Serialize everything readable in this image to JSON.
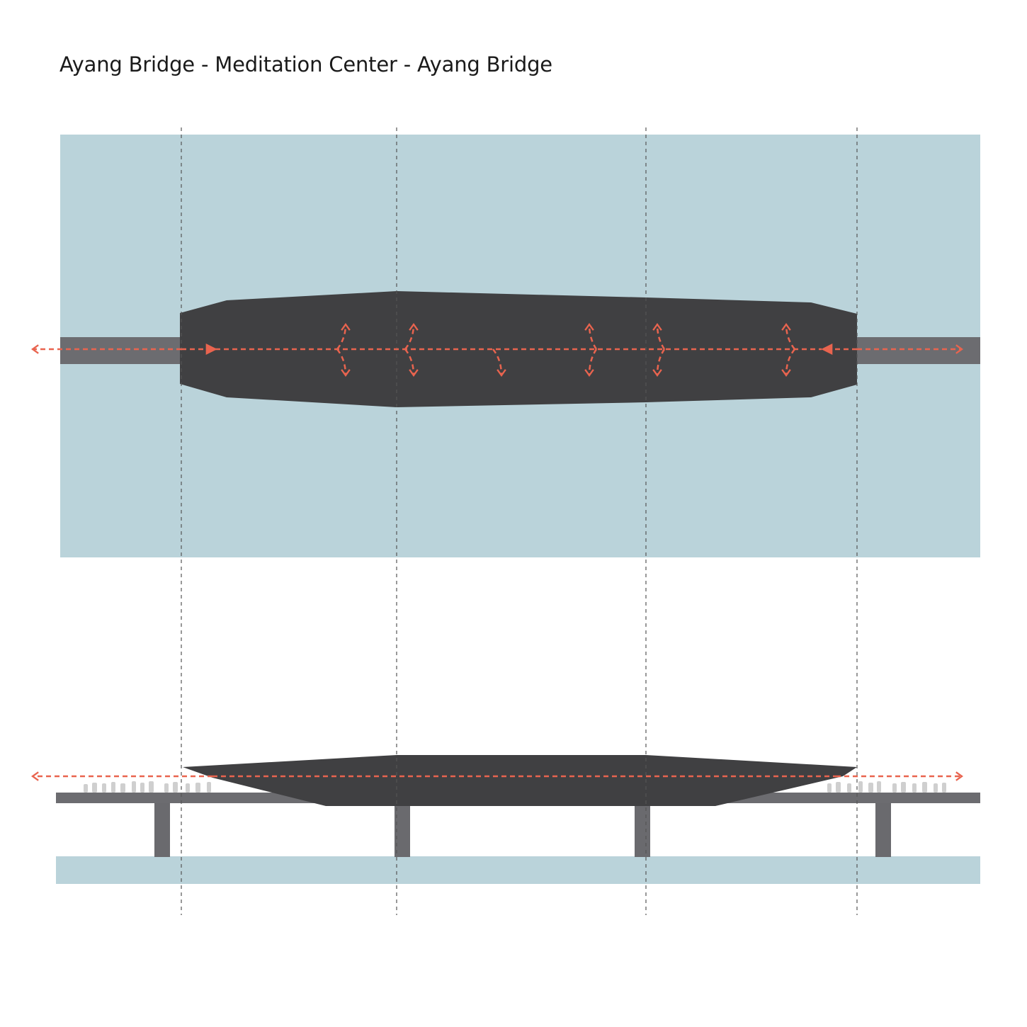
{
  "title": "Ayang Bridge - Meditation Center - Ayang Bridge",
  "colors": {
    "water": "#bad3da",
    "building": "#404042",
    "bridge": "#6c6c70",
    "pier": "#6a6a6e",
    "circulation": "#e9644f",
    "guide": "#555555",
    "people": "#cfcfcf"
  },
  "diagram": {
    "views": [
      "plan",
      "section"
    ]
  }
}
